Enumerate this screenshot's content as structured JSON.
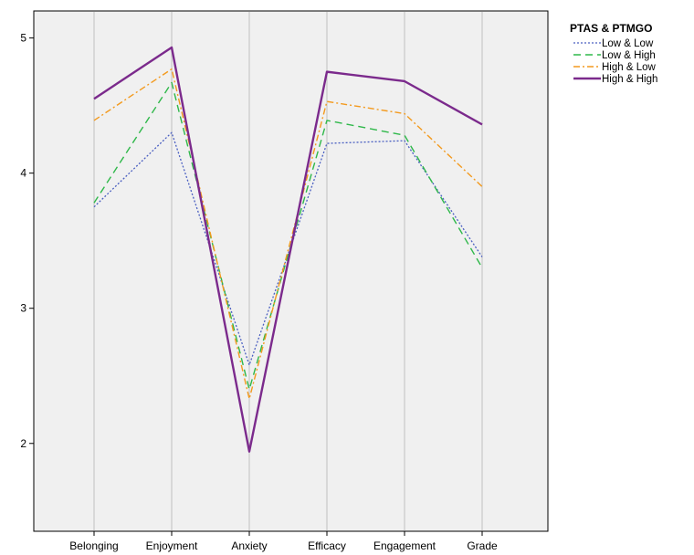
{
  "chart_data": {
    "type": "line",
    "title": "",
    "xlabel": "",
    "ylabel": "",
    "categories": [
      "Belonging",
      "Enjoyment",
      "Anxiety",
      "Efficacy",
      "Engagement",
      "Grade"
    ],
    "y_ticks": [
      "2",
      "3",
      "4",
      "5"
    ],
    "ylim": [
      1.35,
      5.2
    ],
    "grid": "vertical lines at categories",
    "legend": {
      "title": "PTAS & PTMGO",
      "placement": "right"
    },
    "series": [
      {
        "name": "Low & Low",
        "values": [
          3.75,
          4.3,
          2.58,
          4.22,
          4.24,
          3.38
        ],
        "color": "#4a5fc1",
        "dash": "dotted"
      },
      {
        "name": "Low & High",
        "values": [
          3.78,
          4.67,
          2.4,
          4.39,
          4.28,
          3.3
        ],
        "color": "#2fb84a",
        "dash": "dashed"
      },
      {
        "name": "High & Low",
        "values": [
          4.39,
          4.77,
          2.33,
          4.53,
          4.44,
          3.9
        ],
        "color": "#f39a1e",
        "dash": "dash-dot"
      },
      {
        "name": "High & High",
        "values": [
          4.55,
          4.93,
          1.94,
          4.75,
          4.68,
          4.36
        ],
        "color": "#7b2a8c",
        "dash": "solid"
      }
    ],
    "plot_background": "#f0f0f0"
  }
}
